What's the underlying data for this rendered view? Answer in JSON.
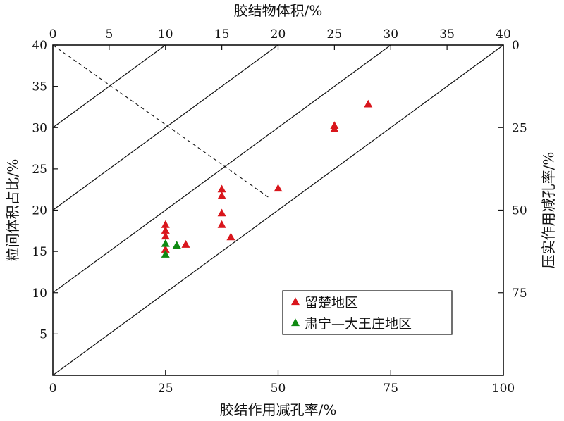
{
  "chart_data": {
    "type": "scatter",
    "axes": {
      "bottom": {
        "label": "胶结作用减孔率/%",
        "range": [
          0,
          100
        ],
        "ticks": [
          0,
          25,
          50,
          75,
          100
        ]
      },
      "left": {
        "label": "粒间体积占比/%",
        "range": [
          0,
          40
        ],
        "ticks": [
          5,
          10,
          15,
          20,
          25,
          30,
          35,
          40
        ]
      },
      "top": {
        "label": "胶结物体积/%",
        "range": [
          0,
          40
        ],
        "ticks": [
          0,
          5,
          10,
          15,
          20,
          25,
          30,
          35,
          40
        ]
      },
      "right": {
        "label": "压实作用减孔率/%",
        "range": [
          100,
          0
        ],
        "ticks": [
          0,
          25,
          50,
          75
        ]
      }
    },
    "reference_lines": {
      "solid_y_intercepts": [
        30,
        20,
        10,
        0
      ],
      "dashed": [
        [
          0,
          40
        ],
        [
          48,
          21.5
        ]
      ]
    },
    "series": [
      {
        "name": "留楚地区",
        "color": "#d9161c",
        "points": [
          [
            25,
            18.2
          ],
          [
            25,
            17.5
          ],
          [
            25,
            16.8
          ],
          [
            25,
            15.2
          ],
          [
            29.5,
            15.8
          ],
          [
            37.5,
            22.5
          ],
          [
            37.5,
            21.7
          ],
          [
            37.5,
            19.6
          ],
          [
            37.5,
            18.2
          ],
          [
            39.5,
            16.7
          ],
          [
            50,
            22.6
          ],
          [
            62.5,
            30.2
          ],
          [
            62.5,
            29.8
          ],
          [
            70,
            32.8
          ]
        ]
      },
      {
        "name": "肃宁—大王庄地区",
        "color": "#0f8a12",
        "points": [
          [
            25,
            15.9
          ],
          [
            25,
            14.6
          ],
          [
            27.5,
            15.7
          ]
        ]
      }
    ],
    "legend": {
      "position": "bottom-right"
    },
    "grid": false
  }
}
